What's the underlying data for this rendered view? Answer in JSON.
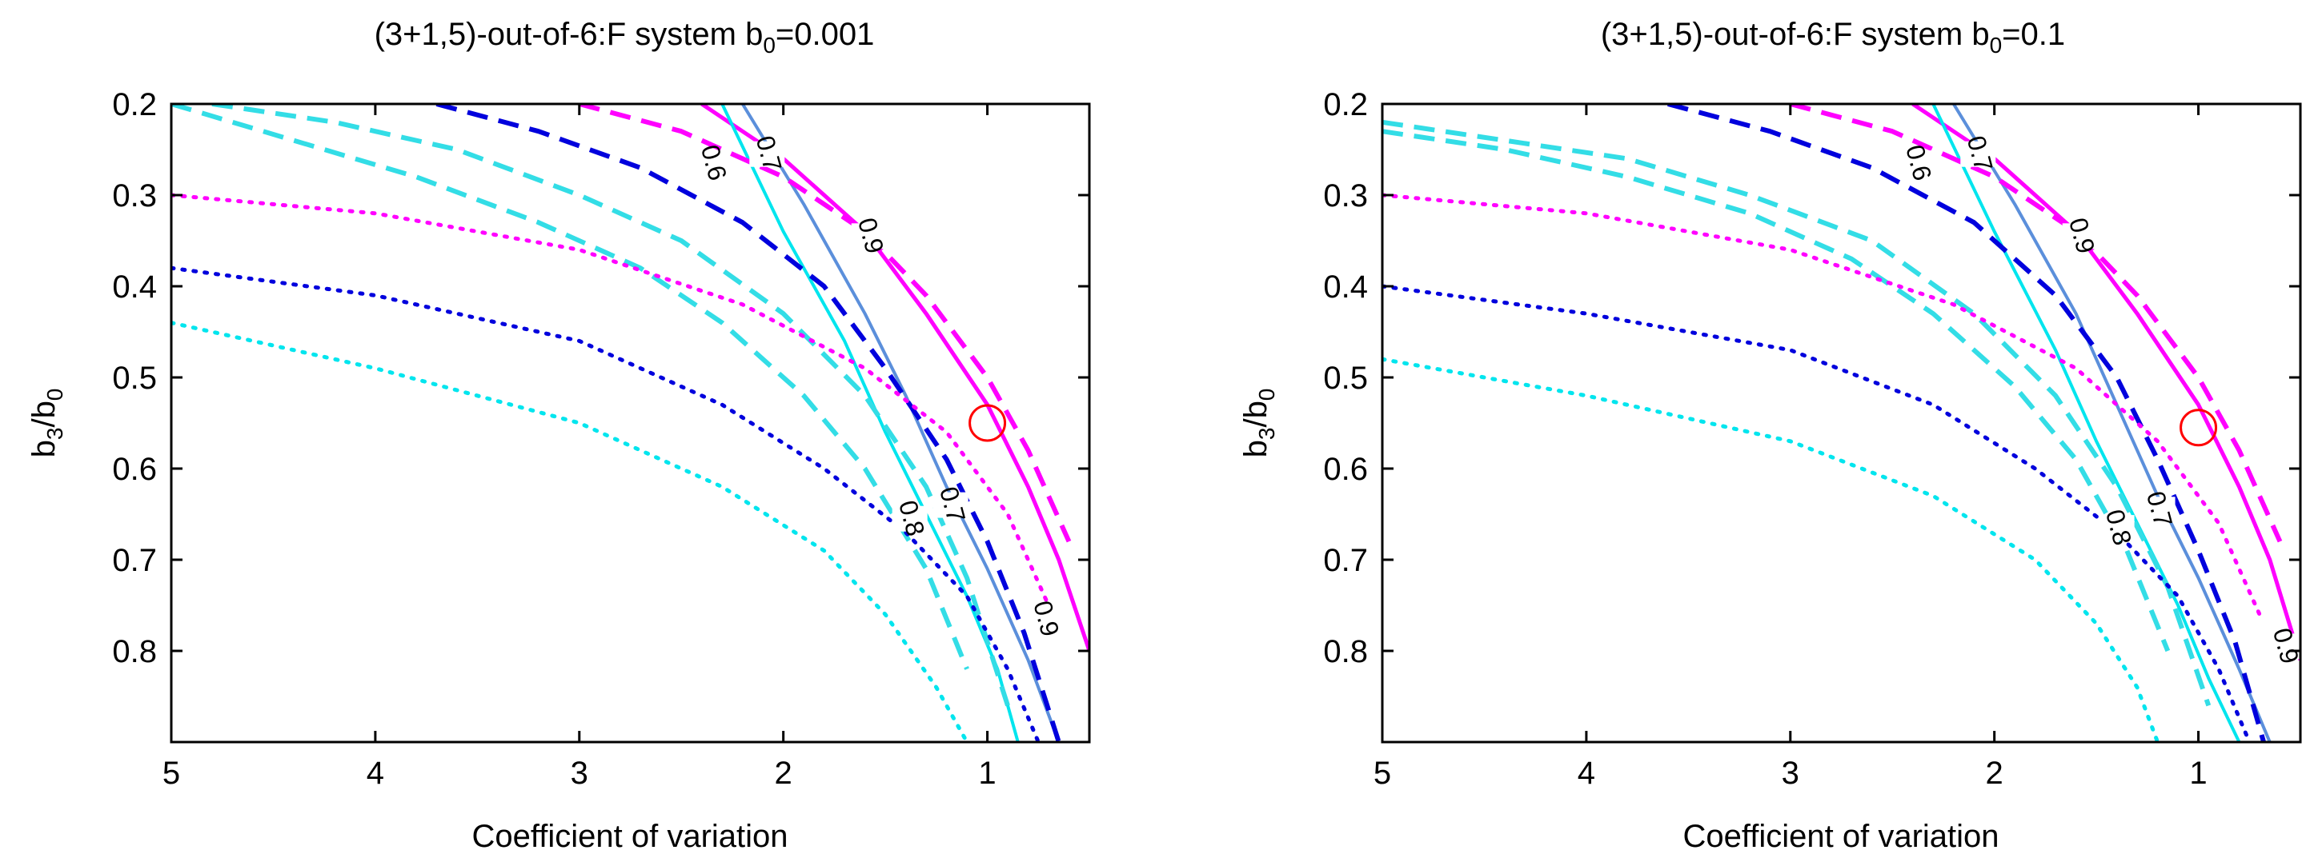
{
  "chart_data": [
    {
      "type": "line",
      "title": "(3+1,5)-out-of-6:F system b",
      "title_sub": "0",
      "title_value": "=0.001",
      "xlabel": "Coefficient of variation",
      "ylabel_main": "b",
      "ylabel_sub1": "3",
      "ylabel_mid": "/b",
      "ylabel_sub2": "0",
      "xlim": [
        5,
        0.5
      ],
      "ylim": [
        0.2,
        0.9
      ],
      "x_reversed": true,
      "y_reversed": true,
      "xticks": [
        5,
        4,
        3,
        2,
        1
      ],
      "xtick_labels": [
        "5",
        "4",
        "3",
        "2",
        "1"
      ],
      "yticks": [
        0.2,
        0.3,
        0.4,
        0.5,
        0.6,
        0.7,
        0.8
      ],
      "ytick_labels": [
        "0.2",
        "0.3",
        "0.4",
        "0.5",
        "0.6",
        "0.7",
        "0.8"
      ],
      "marker": {
        "x": 1.0,
        "y": 0.55,
        "shape": "circle",
        "color": "#ff0000"
      },
      "series": [
        {
          "name": "magenta-solid",
          "color": "#ff00ff",
          "style": "solid",
          "width": 5,
          "x": [
            2.4,
            2.0,
            1.6,
            1.3,
            1.0,
            0.8,
            0.65,
            0.5
          ],
          "y": [
            0.2,
            0.26,
            0.34,
            0.43,
            0.53,
            0.62,
            0.7,
            0.8
          ]
        },
        {
          "name": "steelblue-solid",
          "color": "#5b8fdb",
          "style": "solid",
          "width": 4,
          "x": [
            2.2,
            1.9,
            1.6,
            1.4,
            1.2,
            1.0,
            0.8,
            0.65
          ],
          "y": [
            0.2,
            0.31,
            0.43,
            0.52,
            0.62,
            0.71,
            0.81,
            0.9
          ]
        },
        {
          "name": "cyan-solid",
          "color": "#00e5ee",
          "style": "solid",
          "width": 4,
          "x": [
            2.3,
            2.0,
            1.7,
            1.5,
            1.3,
            1.1,
            0.95,
            0.85
          ],
          "y": [
            0.2,
            0.34,
            0.46,
            0.56,
            0.65,
            0.74,
            0.82,
            0.9
          ]
        },
        {
          "name": "magenta-dash",
          "color": "#ff00ff",
          "style": "dash",
          "width": 6,
          "x": [
            3.0,
            2.5,
            2.0,
            1.6,
            1.3,
            1.0,
            0.8,
            0.6
          ],
          "y": [
            0.2,
            0.23,
            0.28,
            0.34,
            0.41,
            0.5,
            0.58,
            0.68
          ]
        },
        {
          "name": "blue-dash",
          "color": "#0000dd",
          "style": "dash",
          "width": 6,
          "x": [
            3.7,
            3.2,
            2.7,
            2.2,
            1.8,
            1.5,
            1.2,
            1.0,
            0.82,
            0.65
          ],
          "y": [
            0.2,
            0.23,
            0.27,
            0.33,
            0.4,
            0.49,
            0.59,
            0.68,
            0.78,
            0.9
          ]
        },
        {
          "name": "cyan-dash-upper",
          "color": "#33dde6",
          "style": "dash",
          "width": 6,
          "x": [
            4.8,
            4.2,
            3.6,
            3.0,
            2.5,
            2.0,
            1.6,
            1.3,
            1.1,
            0.9
          ],
          "y": [
            0.2,
            0.22,
            0.25,
            0.3,
            0.35,
            0.43,
            0.52,
            0.62,
            0.72,
            0.86
          ]
        },
        {
          "name": "cyan-dash-lower",
          "color": "#33dde6",
          "style": "dash",
          "width": 6,
          "x": [
            5.0,
            4.4,
            3.8,
            3.2,
            2.7,
            2.3,
            1.9,
            1.6,
            1.3,
            1.1
          ],
          "y": [
            0.2,
            0.24,
            0.28,
            0.33,
            0.38,
            0.44,
            0.52,
            0.6,
            0.71,
            0.82
          ]
        },
        {
          "name": "magenta-dot",
          "color": "#ff00ff",
          "style": "dot",
          "width": 5,
          "x": [
            5.0,
            4.0,
            3.0,
            2.2,
            1.6,
            1.2,
            0.9,
            0.7
          ],
          "y": [
            0.3,
            0.32,
            0.36,
            0.42,
            0.49,
            0.56,
            0.65,
            0.75
          ]
        },
        {
          "name": "blue-dot",
          "color": "#0000dd",
          "style": "dot",
          "width": 5,
          "x": [
            5.0,
            4.0,
            3.0,
            2.3,
            1.8,
            1.4,
            1.1,
            0.9,
            0.75
          ],
          "y": [
            0.38,
            0.41,
            0.46,
            0.53,
            0.6,
            0.67,
            0.74,
            0.82,
            0.9
          ]
        },
        {
          "name": "cyan-dot",
          "color": "#00e5ee",
          "style": "dot",
          "width": 5,
          "x": [
            5.0,
            4.0,
            3.0,
            2.3,
            1.8,
            1.5,
            1.25,
            1.1
          ],
          "y": [
            0.44,
            0.49,
            0.55,
            0.62,
            0.69,
            0.76,
            0.84,
            0.9
          ]
        }
      ],
      "contour_labels": [
        {
          "text": "0.6",
          "x": 2.35,
          "y": 0.265
        },
        {
          "text": "0.7",
          "x": 2.08,
          "y": 0.255
        },
        {
          "text": "0.9",
          "x": 1.58,
          "y": 0.345
        },
        {
          "text": "0.8",
          "x": 1.38,
          "y": 0.655
        },
        {
          "text": "0.7",
          "x": 1.18,
          "y": 0.64
        },
        {
          "text": "0.9",
          "x": 0.72,
          "y": 0.765
        }
      ]
    },
    {
      "type": "line",
      "title": "(3+1,5)-out-of-6:F system b",
      "title_sub": "0",
      "title_value": "=0.1",
      "xlabel": "Coefficient of variation",
      "ylabel_main": "b",
      "ylabel_sub1": "3",
      "ylabel_mid": "/b",
      "ylabel_sub2": "0",
      "xlim": [
        5,
        0.5
      ],
      "ylim": [
        0.2,
        0.9
      ],
      "x_reversed": true,
      "y_reversed": true,
      "xticks": [
        5,
        4,
        3,
        2,
        1
      ],
      "xtick_labels": [
        "5",
        "4",
        "3",
        "2",
        "1"
      ],
      "yticks": [
        0.2,
        0.3,
        0.4,
        0.5,
        0.6,
        0.7,
        0.8
      ],
      "ytick_labels": [
        "0.2",
        "0.3",
        "0.4",
        "0.5",
        "0.6",
        "0.7",
        "0.8"
      ],
      "marker": {
        "x": 1.0,
        "y": 0.555,
        "shape": "circle",
        "color": "#ff0000"
      },
      "series": [
        {
          "name": "magenta-solid",
          "color": "#ff00ff",
          "style": "solid",
          "width": 5,
          "x": [
            2.4,
            2.0,
            1.6,
            1.3,
            1.0,
            0.8,
            0.65,
            0.5
          ],
          "y": [
            0.2,
            0.26,
            0.34,
            0.43,
            0.53,
            0.62,
            0.7,
            0.81
          ]
        },
        {
          "name": "steelblue-solid",
          "color": "#5b8fdb",
          "style": "solid",
          "width": 4,
          "x": [
            2.2,
            1.9,
            1.6,
            1.4,
            1.2,
            1.0,
            0.8,
            0.65
          ],
          "y": [
            0.2,
            0.31,
            0.43,
            0.53,
            0.63,
            0.72,
            0.82,
            0.9
          ]
        },
        {
          "name": "cyan-solid",
          "color": "#00e5ee",
          "style": "solid",
          "width": 4,
          "x": [
            2.3,
            2.0,
            1.7,
            1.5,
            1.3,
            1.1,
            0.95,
            0.8
          ],
          "y": [
            0.2,
            0.34,
            0.47,
            0.57,
            0.66,
            0.75,
            0.83,
            0.9
          ]
        },
        {
          "name": "magenta-dash",
          "color": "#ff00ff",
          "style": "dash",
          "width": 6,
          "x": [
            3.0,
            2.5,
            2.0,
            1.6,
            1.3,
            1.0,
            0.8,
            0.6
          ],
          "y": [
            0.2,
            0.23,
            0.28,
            0.34,
            0.41,
            0.5,
            0.58,
            0.68
          ]
        },
        {
          "name": "blue-dash",
          "color": "#0000dd",
          "style": "dash",
          "width": 6,
          "x": [
            3.6,
            3.1,
            2.6,
            2.1,
            1.7,
            1.4,
            1.2,
            1.0,
            0.82,
            0.68
          ],
          "y": [
            0.2,
            0.23,
            0.27,
            0.33,
            0.41,
            0.5,
            0.59,
            0.69,
            0.79,
            0.9
          ]
        },
        {
          "name": "cyan-dash-upper",
          "color": "#33dde6",
          "style": "dash",
          "width": 6,
          "x": [
            5.0,
            4.4,
            3.8,
            3.2,
            2.6,
            2.1,
            1.7,
            1.4,
            1.15,
            0.95
          ],
          "y": [
            0.22,
            0.24,
            0.26,
            0.3,
            0.35,
            0.43,
            0.52,
            0.62,
            0.73,
            0.86
          ]
        },
        {
          "name": "cyan-dash-lower",
          "color": "#33dde6",
          "style": "dash",
          "width": 6,
          "x": [
            5.0,
            4.4,
            3.8,
            3.2,
            2.7,
            2.3,
            1.9,
            1.6,
            1.35,
            1.15
          ],
          "y": [
            0.23,
            0.25,
            0.28,
            0.32,
            0.37,
            0.43,
            0.51,
            0.59,
            0.69,
            0.8
          ]
        },
        {
          "name": "magenta-dot",
          "color": "#ff00ff",
          "style": "dot",
          "width": 5,
          "x": [
            5.0,
            4.0,
            3.0,
            2.2,
            1.6,
            1.2,
            0.9,
            0.7
          ],
          "y": [
            0.3,
            0.32,
            0.36,
            0.42,
            0.49,
            0.57,
            0.66,
            0.76
          ]
        },
        {
          "name": "blue-dot",
          "color": "#0000dd",
          "style": "dot",
          "width": 5,
          "x": [
            5.0,
            4.0,
            3.0,
            2.3,
            1.8,
            1.4,
            1.1,
            0.9,
            0.75
          ],
          "y": [
            0.4,
            0.43,
            0.47,
            0.53,
            0.6,
            0.67,
            0.74,
            0.82,
            0.9
          ]
        },
        {
          "name": "cyan-dot",
          "color": "#00e5ee",
          "style": "dot",
          "width": 5,
          "x": [
            5.0,
            4.0,
            3.0,
            2.3,
            1.8,
            1.5,
            1.3,
            1.2
          ],
          "y": [
            0.48,
            0.52,
            0.57,
            0.63,
            0.7,
            0.77,
            0.84,
            0.9
          ]
        }
      ],
      "contour_labels": [
        {
          "text": "0.6",
          "x": 2.38,
          "y": 0.265
        },
        {
          "text": "0.7",
          "x": 2.08,
          "y": 0.255
        },
        {
          "text": "0.9",
          "x": 1.58,
          "y": 0.345
        },
        {
          "text": "0.8",
          "x": 1.4,
          "y": 0.665
        },
        {
          "text": "0.7",
          "x": 1.2,
          "y": 0.645
        },
        {
          "text": "0.9",
          "x": 0.58,
          "y": 0.795
        }
      ]
    }
  ]
}
